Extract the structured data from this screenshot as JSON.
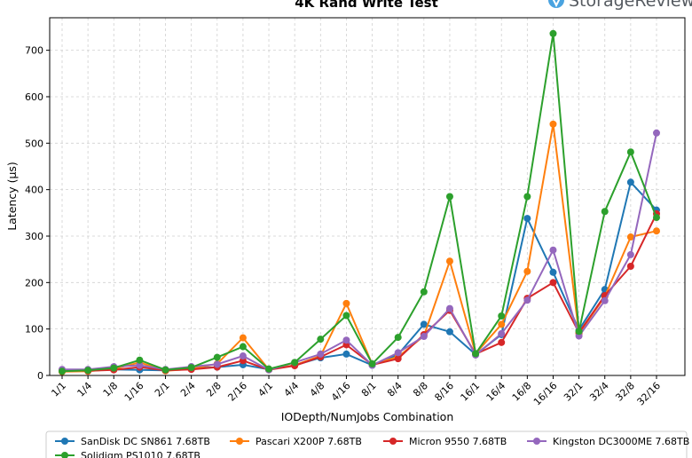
{
  "brand": {
    "name": "StorageReview",
    "logo_color": "#4aa3e0"
  },
  "chart_data": {
    "type": "line",
    "title": "4K Rand Write Test",
    "xlabel": "IODepth/NumJobs Combination",
    "ylabel": "Latency (µs)",
    "ylim": [
      0,
      770
    ],
    "yticks": [
      0,
      100,
      200,
      300,
      400,
      500,
      600,
      700
    ],
    "grid": true,
    "legend_position": "bottom",
    "categories": [
      "1/1",
      "1/4",
      "1/8",
      "1/16",
      "2/1",
      "2/4",
      "2/8",
      "2/16",
      "4/1",
      "4/4",
      "4/8",
      "4/16",
      "8/1",
      "8/4",
      "8/8",
      "8/16",
      "16/1",
      "16/4",
      "16/8",
      "16/16",
      "32/1",
      "32/4",
      "32/8",
      "32/16"
    ],
    "series": [
      {
        "name": "SanDisk DC SN861 7.68TB",
        "color": "#1f77b4",
        "values": [
          10,
          12,
          13,
          12,
          11,
          15,
          18,
          23,
          13,
          22,
          38,
          46,
          22,
          45,
          110,
          94,
          45,
          88,
          338,
          222,
          98,
          185,
          416,
          356
        ]
      },
      {
        "name": "Pascari X200P 7.68TB",
        "color": "#ff7f0e",
        "values": [
          8,
          9,
          14,
          28,
          10,
          14,
          25,
          81,
          13,
          22,
          42,
          155,
          24,
          40,
          85,
          246,
          47,
          110,
          224,
          541,
          90,
          170,
          298,
          311
        ]
      },
      {
        "name": "Micron 9550 7.68TB",
        "color": "#d62728",
        "values": [
          12,
          10,
          12,
          18,
          11,
          13,
          18,
          32,
          12,
          21,
          40,
          66,
          23,
          36,
          88,
          140,
          46,
          71,
          166,
          200,
          92,
          172,
          235,
          348
        ]
      },
      {
        "name": "Kingston DC3000ME 7.68TB",
        "color": "#9467bd",
        "values": [
          13,
          13,
          19,
          22,
          13,
          19,
          24,
          42,
          12,
          28,
          46,
          76,
          22,
          49,
          84,
          144,
          44,
          90,
          162,
          270,
          85,
          161,
          260,
          522
        ]
      },
      {
        "name": "Solidigm PS1010 7.68TB",
        "color": "#2ca02c",
        "values": [
          9,
          11,
          16,
          33,
          12,
          17,
          39,
          62,
          14,
          28,
          78,
          129,
          25,
          82,
          180,
          385,
          47,
          128,
          385,
          736,
          95,
          353,
          481,
          340
        ]
      }
    ]
  }
}
